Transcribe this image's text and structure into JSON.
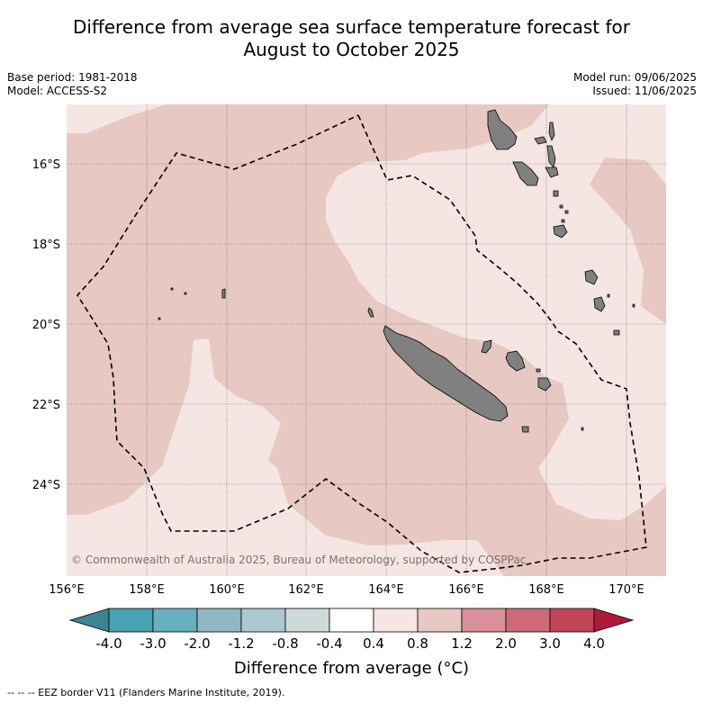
{
  "title": {
    "line1": "Difference from average sea surface temperature forecast for",
    "line2": "August to October 2025"
  },
  "meta": {
    "base_period": "Base period: 1981-2018",
    "model": "Model: ACCESS-S2",
    "model_run": "Model run: 09/06/2025",
    "issued": "Issued: 11/06/2025"
  },
  "map": {
    "copyright": "© Commonwealth of Australia 2025, Bureau of Meteorology, supported by COSPPac",
    "lat_labels": [
      "16°S",
      "18°S",
      "20°S",
      "22°S",
      "24°S"
    ],
    "lon_labels": [
      "156°E",
      "158°E",
      "160°E",
      "162°E",
      "164°E",
      "166°E",
      "168°E",
      "170°E"
    ],
    "colors": {
      "anomaly_0_4_to_0_8": "#f5e6e4",
      "anomaly_0_8_to_1_2": "#e8c8c3",
      "land": "#808080"
    }
  },
  "colorbar": {
    "title": "Difference from average (°C)",
    "tick_labels": [
      "-4.0",
      "-3.0",
      "-2.0",
      "-1.2",
      "-0.8",
      "-0.4",
      "0.4",
      "0.8",
      "1.2",
      "2.0",
      "3.0",
      "4.0"
    ],
    "colors": [
      "#3a8593",
      "#47a2b1",
      "#6aafbd",
      "#8db8c4",
      "#aac9ce",
      "#ced9da",
      "#ffffff",
      "#f5e6e4",
      "#e8c8c3",
      "#d9909a",
      "#ce6a78",
      "#c04556",
      "#b01a3a"
    ]
  },
  "footnote": "--  --  -- EEZ border V11 (Flanders Marine Institute, 2019)."
}
